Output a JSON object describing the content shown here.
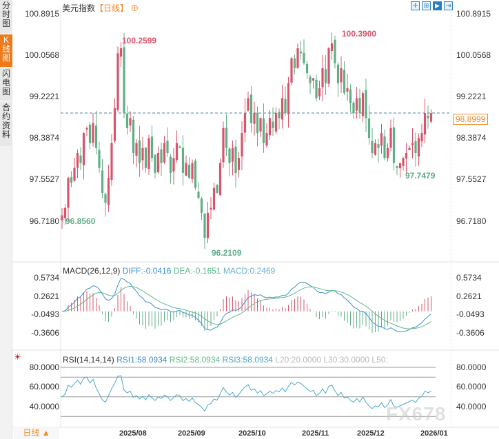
{
  "sidebar": {
    "tabs": [
      {
        "label": "分时图"
      },
      {
        "label": "K线图",
        "active": true
      },
      {
        "label": "闪电图"
      },
      {
        "label": "合约资料"
      }
    ]
  },
  "header": {
    "title": "美元指数",
    "period_tag": "【日线】",
    "add_icon": "circle-plus-icon",
    "tools": [
      "crosshair-icon",
      "range-icon",
      "play-icon",
      "exit-icon"
    ]
  },
  "price_axis": {
    "ticks": [
      "100.8915",
      "100.0568",
      "99.2221",
      "98.3874",
      "97.5527",
      "96.7180"
    ],
    "current": "98.8999"
  },
  "annotations": {
    "high1": "100.2599",
    "high2": "100.3900",
    "low1": "96.8560",
    "low2": "96.2109",
    "low3": "97.7479"
  },
  "macd": {
    "title": "MACD(26,12,9)",
    "diff": "DIFF:-0.0416",
    "dea": "DEA:-0.1651",
    "macd": "MACD:0.2469",
    "ticks": [
      "0.5734",
      "0.2621",
      "-0.0493",
      "-0.3606"
    ]
  },
  "rsi": {
    "title": "RSI(14,14,14)",
    "rsi1": "RSI1:58.0934",
    "rsi2": "RSI2:58.0934",
    "rsi3": "RSI3:58.0934",
    "l20": "L20:20.0000",
    "l30": "L30:30.0000",
    "l50": "L50:",
    "ticks": [
      "80.0000",
      "60.0000",
      "40.0000"
    ]
  },
  "dates": [
    "2025/08",
    "2025/09",
    "2025/10",
    "2025/11",
    "2025/12",
    "2026/01"
  ],
  "footer": {
    "period": "日线 ▲"
  },
  "watermark": "FX678",
  "colors": {
    "up": "#d9546a",
    "down": "#5fae85",
    "accent": "#f08a24",
    "diff": "#3a8fd0",
    "dea": "#5fb88a"
  },
  "chart_data": {
    "type": "candlestick",
    "ylim": [
      96.2,
      100.39
    ],
    "closes": [
      96.85,
      97.0,
      97.6,
      97.5,
      97.8,
      98.1,
      97.9,
      98.5,
      98.6,
      98.3,
      98.7,
      98.2,
      97.8,
      97.3,
      97.1,
      97.6,
      98.3,
      99.0,
      100.1,
      100.2,
      98.9,
      98.6,
      98.8,
      98.1,
      98.3,
      97.9,
      98.2,
      97.8,
      98.4,
      98.0,
      97.7,
      98.1,
      97.9,
      98.3,
      98.1,
      97.7,
      98.0,
      98.3,
      98.2,
      97.7,
      97.9,
      97.6,
      97.9,
      97.4,
      97.2,
      96.9,
      96.4,
      96.9,
      97.0,
      97.4,
      97.3,
      97.9,
      98.6,
      98.2,
      97.9,
      98.2,
      97.7,
      98.0,
      98.5,
      98.9,
      99.2,
      98.7,
      98.9,
      98.5,
      98.8,
      98.3,
      98.5,
      98.8,
      98.6,
      98.9,
      98.8,
      99.2,
      98.9,
      99.5,
      100.0,
      99.8,
      100.2,
      100.1,
      99.9,
      99.7,
      99.5,
      99.6,
      99.2,
      99.4,
      99.8,
      99.5,
      100.2,
      100.3,
      99.9,
      99.5,
      99.8,
      99.3,
      99.4,
      99.1,
      98.9,
      99.2,
      98.9,
      99.3,
      98.8,
      98.4,
      98.1,
      98.3,
      98.2,
      98.5,
      98.0,
      98.2,
      98.6,
      97.9,
      97.8,
      97.9,
      98.0,
      98.1,
      98.2,
      98.3,
      98.1,
      98.4,
      98.5,
      98.9,
      98.8,
      98.9
    ]
  }
}
